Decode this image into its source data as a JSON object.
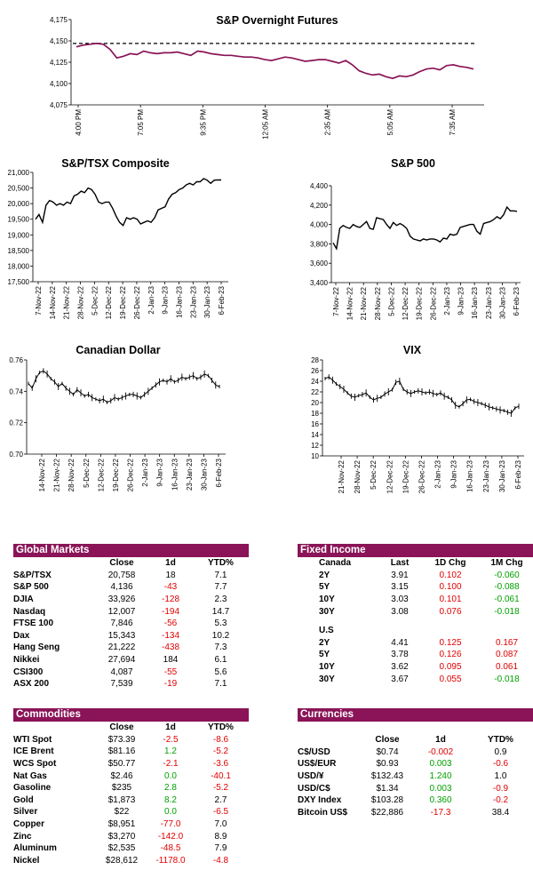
{
  "charts": {
    "overnight": {
      "type": "line",
      "title": "S&P Overnight Futures",
      "ylim": [
        4075,
        4175
      ],
      "yticks": [
        "4,075",
        "4,100",
        "4,125",
        "4,150",
        "4,175"
      ],
      "xticks": [
        "4:00 PM",
        "7:05 PM",
        "9:35 PM",
        "12:05 AM",
        "2:35 AM",
        "5:05 AM",
        "7:35 AM"
      ],
      "reference_line": 4147,
      "values": [
        4143,
        4145,
        4146,
        4147,
        4146,
        4140,
        4130,
        4132,
        4135,
        4134,
        4138,
        4136,
        4135,
        4136,
        4136,
        4137,
        4135,
        4133,
        4138,
        4137,
        4135,
        4134,
        4133,
        4133,
        4132,
        4131,
        4131,
        4130,
        4128,
        4127,
        4129,
        4131,
        4130,
        4128,
        4126,
        4127,
        4128,
        4128,
        4126,
        4124,
        4127,
        4122,
        4115,
        4112,
        4110,
        4111,
        4108,
        4106,
        4109,
        4108,
        4110,
        4114,
        4117,
        4118,
        4116,
        4121,
        4122,
        4120,
        4119,
        4117
      ]
    },
    "tsx": {
      "type": "line",
      "title": "S&P/TSX Composite",
      "ylim": [
        17500,
        21000
      ],
      "yticks": [
        "17,500",
        "18,000",
        "18,500",
        "19,000",
        "19,500",
        "20,000",
        "20,500",
        "21,000"
      ],
      "xticks": [
        "7-Nov-22",
        "14-Nov-22",
        "21-Nov-22",
        "28-Nov-22",
        "5-Dec-22",
        "12-Dec-22",
        "19-Dec-22",
        "26-Dec-22",
        "2-Jan-23",
        "9-Jan-23",
        "16-Jan-23",
        "23-Jan-23",
        "30-Jan-23",
        "6-Feb-23"
      ],
      "values": [
        19500,
        19650,
        19400,
        19950,
        20100,
        20050,
        19950,
        20000,
        19950,
        20050,
        20000,
        20250,
        20300,
        20400,
        20350,
        20500,
        20450,
        20300,
        20050,
        20000,
        20050,
        20050,
        19850,
        19600,
        19400,
        19300,
        19550,
        19500,
        19550,
        19500,
        19350,
        19400,
        19450,
        19400,
        19550,
        19800,
        19850,
        19900,
        20150,
        20300,
        20350,
        20450,
        20500,
        20600,
        20650,
        20600,
        20700,
        20700,
        20800,
        20750,
        20650,
        20750,
        20760,
        20758
      ]
    },
    "sp500": {
      "type": "line",
      "title": "S&P 500",
      "ylim": [
        3400,
        4400
      ],
      "yticks": [
        "3,400",
        "3,600",
        "3,800",
        "4,000",
        "4,200",
        "4,400"
      ],
      "xticks": [
        "7-Nov-22",
        "14-Nov-22",
        "21-Nov-22",
        "28-Nov-22",
        "5-Dec-22",
        "12-Dec-22",
        "19-Dec-22",
        "26-Dec-22",
        "2-Jan-23",
        "9-Jan-23",
        "16-Jan-23",
        "23-Jan-23",
        "30-Jan-23",
        "6-Feb-23"
      ],
      "values": [
        3810,
        3750,
        3960,
        3990,
        3970,
        3960,
        4000,
        3980,
        3970,
        4000,
        4030,
        3960,
        3950,
        4070,
        4060,
        4050,
        4000,
        3960,
        4020,
        3990,
        4010,
        3990,
        3960,
        3880,
        3850,
        3840,
        3830,
        3850,
        3840,
        3850,
        3850,
        3840,
        3820,
        3860,
        3850,
        3900,
        3890,
        3900,
        3970,
        3980,
        3990,
        4000,
        4000,
        3930,
        3900,
        4010,
        4020,
        4030,
        4050,
        4080,
        4060,
        4100,
        4180,
        4140,
        4140,
        4136
      ]
    },
    "cad": {
      "type": "line",
      "title": "Canadian Dollar",
      "ylim": [
        0.7,
        0.76
      ],
      "yticks": [
        "0.70",
        "0.72",
        "0.74",
        "0.76"
      ],
      "xticks": [
        "14-Nov-22",
        "21-Nov-22",
        "28-Nov-22",
        "5-Dec-22",
        "12-Dec-22",
        "19-Dec-22",
        "26-Dec-22",
        "2-Jan-23",
        "9-Jan-23",
        "16-Jan-23",
        "23-Jan-23",
        "30-Jan-23",
        "6-Feb-23"
      ],
      "values": [
        0.745,
        0.742,
        0.748,
        0.752,
        0.753,
        0.751,
        0.748,
        0.746,
        0.743,
        0.745,
        0.742,
        0.74,
        0.738,
        0.741,
        0.739,
        0.737,
        0.738,
        0.736,
        0.735,
        0.734,
        0.735,
        0.733,
        0.734,
        0.736,
        0.735,
        0.736,
        0.737,
        0.738,
        0.738,
        0.737,
        0.736,
        0.738,
        0.74,
        0.742,
        0.744,
        0.746,
        0.747,
        0.746,
        0.748,
        0.746,
        0.747,
        0.749,
        0.748,
        0.749,
        0.75,
        0.748,
        0.749,
        0.751,
        0.75,
        0.747,
        0.744,
        0.743
      ]
    },
    "vix": {
      "type": "line",
      "title": "VIX",
      "ylim": [
        10,
        28
      ],
      "yticks": [
        "10",
        "12",
        "14",
        "16",
        "18",
        "20",
        "22",
        "24",
        "26",
        "28"
      ],
      "xticks": [
        "21-Nov-22",
        "28-Nov-22",
        "5-Dec-22",
        "12-Dec-22",
        "19-Dec-22",
        "26-Dec-22",
        "2-Jan-23",
        "9-Jan-23",
        "16-Jan-23",
        "23-Jan-23",
        "30-Jan-23",
        "6-Feb-23"
      ],
      "values": [
        24.5,
        24.8,
        24.2,
        23.5,
        23.0,
        22.5,
        21.8,
        21.2,
        21.0,
        21.3,
        21.5,
        21.8,
        21.0,
        20.5,
        20.8,
        21.0,
        21.6,
        22.0,
        22.4,
        23.8,
        24.0,
        22.5,
        22.0,
        21.7,
        22.0,
        22.2,
        22.0,
        21.8,
        22.0,
        21.7,
        21.5,
        21.8,
        21.2,
        21.0,
        20.5,
        19.5,
        19.2,
        19.8,
        20.5,
        20.6,
        20.2,
        20.0,
        19.8,
        19.5,
        19.2,
        19.0,
        18.8,
        18.6,
        18.5,
        18.2,
        18.0,
        19.0,
        19.3
      ]
    }
  },
  "global_markets": {
    "title": "Global Markets",
    "cols": [
      "Close",
      "1d",
      "YTD%"
    ],
    "rows": [
      {
        "name": "S&P/TSX",
        "close": "20,758",
        "d1": "18",
        "ytd": "7.1",
        "neg": false
      },
      {
        "name": "S&P 500",
        "close": "4,136",
        "d1": "-43",
        "ytd": "7.7",
        "neg": true
      },
      {
        "name": "DJIA",
        "close": "33,926",
        "d1": "-128",
        "ytd": "2.3",
        "neg": true
      },
      {
        "name": "Nasdaq",
        "close": "12,007",
        "d1": "-194",
        "ytd": "14.7",
        "neg": true
      },
      {
        "name": "FTSE 100",
        "close": "7,846",
        "d1": "-56",
        "ytd": "5.3",
        "neg": true
      },
      {
        "name": "Dax",
        "close": "15,343",
        "d1": "-134",
        "ytd": "10.2",
        "neg": true
      },
      {
        "name": "Hang Seng",
        "close": "21,222",
        "d1": "-438",
        "ytd": "7.3",
        "neg": true
      },
      {
        "name": "Nikkei",
        "close": "27,694",
        "d1": "184",
        "ytd": "6.1",
        "neg": false
      },
      {
        "name": "CSI300",
        "close": "4,087",
        "d1": "-55",
        "ytd": "5.6",
        "neg": true
      },
      {
        "name": "ASX 200",
        "close": "7,539",
        "d1": "-19",
        "ytd": "7.1",
        "neg": true
      }
    ]
  },
  "fixed_income": {
    "title": "Fixed Income",
    "canada_label": "Canada",
    "cols": [
      "Last",
      "1D Chg",
      "1M Chg"
    ],
    "canada": [
      {
        "name": "2Y",
        "last": "3.91",
        "d1": "0.102",
        "m1": "-0.060"
      },
      {
        "name": "5Y",
        "last": "3.15",
        "d1": "0.100",
        "m1": "-0.088"
      },
      {
        "name": "10Y",
        "last": "3.03",
        "d1": "0.101",
        "m1": "-0.061"
      },
      {
        "name": "30Y",
        "last": "3.08",
        "d1": "0.076",
        "m1": "-0.018"
      }
    ],
    "us_label": "U.S",
    "us": [
      {
        "name": "2Y",
        "last": "4.41",
        "d1": "0.125",
        "m1": "0.167"
      },
      {
        "name": "5Y",
        "last": "3.78",
        "d1": "0.126",
        "m1": "0.087"
      },
      {
        "name": "10Y",
        "last": "3.62",
        "d1": "0.095",
        "m1": "0.061"
      },
      {
        "name": "30Y",
        "last": "3.67",
        "d1": "0.055",
        "m1": "-0.018"
      }
    ]
  },
  "commodities": {
    "title": "Commodities",
    "cols": [
      "Close",
      "1d",
      "YTD%"
    ],
    "rows": [
      {
        "name": "WTI Spot",
        "close": "$73.39",
        "d1": "-2.5",
        "d1c": "neg",
        "ytd": "-8.6",
        "ytdc": "neg"
      },
      {
        "name": "ICE Brent",
        "close": "$81.16",
        "d1": "1.2",
        "d1c": "pos",
        "ytd": "-5.2",
        "ytdc": "neg"
      },
      {
        "name": "WCS Spot",
        "close": "$50.77",
        "d1": "-2.1",
        "d1c": "neg",
        "ytd": "-3.6",
        "ytdc": "neg"
      },
      {
        "name": "Nat Gas",
        "close": "$2.46",
        "d1": "0.0",
        "d1c": "pos",
        "ytd": "-40.1",
        "ytdc": "neg"
      },
      {
        "name": "Gasoline",
        "close": "$235",
        "d1": "2.8",
        "d1c": "pos",
        "ytd": "-5.2",
        "ytdc": "neg"
      },
      {
        "name": "Gold",
        "close": "$1,873",
        "d1": "8.2",
        "d1c": "pos",
        "ytd": "2.7",
        "ytdc": ""
      },
      {
        "name": "Silver",
        "close": "$22",
        "d1": "0.0",
        "d1c": "pos",
        "ytd": "-6.5",
        "ytdc": "neg"
      },
      {
        "name": "Copper",
        "close": "$8,951",
        "d1": "-77.0",
        "d1c": "neg",
        "ytd": "7.0",
        "ytdc": ""
      },
      {
        "name": "Zinc",
        "close": "$3,270",
        "d1": "-142.0",
        "d1c": "neg",
        "ytd": "8.9",
        "ytdc": ""
      },
      {
        "name": "Aluminum",
        "close": "$2,535",
        "d1": "-48.5",
        "d1c": "neg",
        "ytd": "7.9",
        "ytdc": ""
      },
      {
        "name": "Nickel",
        "close": "$28,612",
        "d1": "-1178.0",
        "d1c": "neg",
        "ytd": "-4.8",
        "ytdc": "neg"
      }
    ]
  },
  "currencies": {
    "title": "Currencies",
    "cols": [
      "Close",
      "1d",
      "YTD%"
    ],
    "rows": [
      {
        "name": "C$/USD",
        "close": "$0.74",
        "d1": "-0.002",
        "d1c": "neg",
        "ytd": "0.9",
        "ytdc": ""
      },
      {
        "name": "US$/EUR",
        "close": "$0.93",
        "d1": "0.003",
        "d1c": "pos",
        "ytd": "-0.6",
        "ytdc": "neg"
      },
      {
        "name": "USD/¥",
        "close": "$132.43",
        "d1": "1.240",
        "d1c": "pos",
        "ytd": "1.0",
        "ytdc": ""
      },
      {
        "name": "USD/C$",
        "close": "$1.34",
        "d1": "0.003",
        "d1c": "pos",
        "ytd": "-0.9",
        "ytdc": "neg"
      },
      {
        "name": "DXY Index",
        "close": "$103.28",
        "d1": "0.360",
        "d1c": "pos",
        "ytd": "-0.2",
        "ytdc": "neg"
      },
      {
        "name": "Bitcoin US$",
        "close": "$22,886",
        "d1": "-17.3",
        "d1c": "neg",
        "ytd": "38.4",
        "ytdc": ""
      }
    ]
  },
  "colors": {
    "header": "#8a1457",
    "overnight_line": "#8a1457",
    "negative": "#e00000",
    "positive": "#00a000"
  }
}
